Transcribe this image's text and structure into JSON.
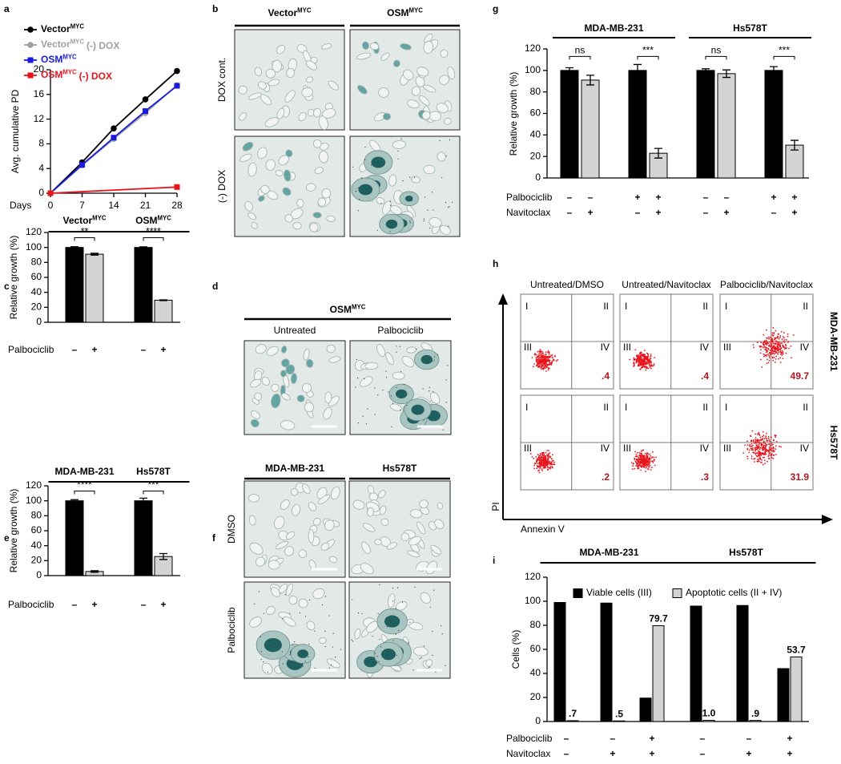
{
  "chart_data": [
    {
      "type": "line",
      "label": "a",
      "ylabel": "Avg. cumulative PD",
      "xlabel": "Days",
      "x": [
        0,
        7,
        14,
        21,
        28
      ],
      "xlim": [
        0,
        28
      ],
      "xticks": [
        0,
        7,
        14,
        21,
        28
      ],
      "ylim": [
        0,
        20
      ],
      "yticks": [
        0,
        4,
        8,
        12,
        16,
        20
      ],
      "series": [
        {
          "name": "Vector",
          "name_sup": "MYC",
          "color": "#000000",
          "marker": "circle",
          "values": [
            0,
            5,
            10.5,
            15.2,
            19.8
          ]
        },
        {
          "name": "Vector",
          "name_sup": "MYC",
          "name_suffix": "(-) DOX",
          "color": "#a0a0a0",
          "marker": "circle",
          "values": [
            0,
            4.5,
            8.8,
            13,
            17.5
          ]
        },
        {
          "name": "OSM",
          "name_sup": "MYC",
          "color": "#1a1adc",
          "marker": "square",
          "values": [
            0,
            4.6,
            9,
            13.3,
            17.4
          ]
        },
        {
          "name": "OSM",
          "name_sup": "MYC",
          "name_suffix": "(-) DOX",
          "color": "#e8141c",
          "marker": "square",
          "x": [
            0,
            28
          ],
          "values": [
            0,
            1
          ]
        }
      ]
    },
    {
      "type": "image-grid",
      "label": "b",
      "columns": [
        {
          "name": "Vector",
          "name_sup": "MYC"
        },
        {
          "name": "OSM",
          "name_sup": "MYC"
        }
      ],
      "rows": [
        "DOX cont.",
        "(-) DOX"
      ]
    },
    {
      "type": "bar",
      "label": "c",
      "ylabel": "Relative growth (%)",
      "ylim": [
        0,
        120
      ],
      "yticks": [
        0,
        20,
        40,
        60,
        80,
        100,
        120
      ],
      "headers": [
        {
          "name": "Vector",
          "name_sup": "MYC"
        },
        {
          "name": "OSM",
          "name_sup": "MYC"
        }
      ],
      "series": [
        {
          "color": "#000000",
          "values": [
            100,
            100
          ],
          "errors": [
            1,
            0.8
          ]
        },
        {
          "color": "#d3d3d3",
          "values": [
            91,
            29.5
          ],
          "errors": [
            1.2,
            0.5
          ]
        }
      ],
      "significance": [
        "**",
        "****"
      ],
      "treatments": [
        {
          "name": "Palbociclib",
          "signs": [
            "–",
            "+",
            "–",
            "+"
          ]
        }
      ]
    },
    {
      "type": "image-grid",
      "label": "d",
      "header": {
        "name": "OSM",
        "name_sup": "MYC"
      },
      "columns": [
        {
          "name": "Untreated"
        },
        {
          "name": "Palbociclib"
        }
      ]
    },
    {
      "type": "bar",
      "label": "e",
      "ylabel": "Relative growth (%)",
      "ylim": [
        0,
        120
      ],
      "yticks": [
        0,
        20,
        40,
        60,
        80,
        100,
        120
      ],
      "headers": [
        {
          "name": "MDA-MB-231"
        },
        {
          "name": "Hs578T"
        }
      ],
      "series": [
        {
          "color": "#000000",
          "values": [
            100,
            100
          ],
          "errors": [
            1.5,
            3.5
          ]
        },
        {
          "color": "#d3d3d3",
          "values": [
            5.5,
            25.5
          ],
          "errors": [
            1,
            4
          ]
        }
      ],
      "significance": [
        "****",
        "***"
      ],
      "treatments": [
        {
          "name": "Palbociclib",
          "signs": [
            "–",
            "+",
            "–",
            "+"
          ]
        }
      ]
    },
    {
      "type": "image-grid",
      "label": "f",
      "columns": [
        {
          "name": "MDA-MB-231"
        },
        {
          "name": "Hs578T"
        }
      ],
      "rows": [
        "DMSO",
        "Palbociclib"
      ]
    },
    {
      "type": "bar",
      "label": "g",
      "ylabel": "Relative growth (%)",
      "ylim": [
        0,
        120
      ],
      "yticks": [
        0,
        20,
        40,
        60,
        80,
        100,
        120
      ],
      "headers": [
        {
          "name": "MDA-MB-231"
        },
        {
          "name": "Hs578T"
        }
      ],
      "series": [
        {
          "color": "#000000",
          "values": [
            100,
            100,
            100,
            100
          ],
          "errors": [
            2.5,
            5.5,
            1.5,
            3.5
          ]
        },
        {
          "color": "#d3d3d3",
          "values": [
            91,
            23,
            97,
            30.5
          ],
          "errors": [
            4.5,
            4.5,
            3.5,
            4.5
          ]
        }
      ],
      "significance": [
        "ns",
        "***",
        "ns",
        "***"
      ],
      "treatments": [
        {
          "name": "Palbociclib",
          "signs": [
            "–",
            "–",
            "+",
            "+",
            "–",
            "–",
            "+",
            "+"
          ]
        },
        {
          "name": "Navitoclax",
          "signs": [
            "–",
            "+",
            "–",
            "+",
            "–",
            "+",
            "–",
            "+"
          ]
        }
      ]
    },
    {
      "type": "flow-grid",
      "label": "h",
      "columns": [
        "Untreated/DMSO",
        "Untreated/Navitoclax",
        "Palbociclib/Navitoclax"
      ],
      "rows": [
        "MDA-MB-231",
        "Hs578T"
      ],
      "quadrants": [
        "I",
        "II",
        "III",
        "IV"
      ],
      "percentages": [
        [
          ".4",
          ".4",
          "49.7"
        ],
        [
          ".2",
          ".3",
          "31.9"
        ]
      ],
      "xlabel": "Annexin V",
      "ylabel": "PI"
    },
    {
      "type": "bar",
      "label": "i",
      "ylabel": "Cells (%)",
      "ylim": [
        0,
        120
      ],
      "yticks": [
        0,
        20,
        40,
        60,
        80,
        100,
        120
      ],
      "headers": [
        {
          "name": "MDA-MB-231"
        },
        {
          "name": "Hs578T"
        }
      ],
      "series": [
        {
          "name": "Viable cells (III)",
          "color": "#000000",
          "values": [
            99,
            98.5,
            19.5,
            96,
            96.5,
            44
          ]
        },
        {
          "name": "Apoptotic cells (II + IV)",
          "color": "#d3d3d3",
          "values": [
            0.7,
            0.5,
            79.7,
            1.0,
            0.9,
            53.7
          ],
          "value_labels": [
            ".7",
            ".5",
            "79.7",
            "1.0",
            ".9",
            "53.7"
          ]
        }
      ],
      "treatments": [
        {
          "name": "Palbociclib",
          "signs": [
            "–",
            "–",
            "+",
            "–",
            "–",
            "+"
          ]
        },
        {
          "name": "Navitoclax",
          "signs": [
            "–",
            "+",
            "+",
            "–",
            "+",
            "+"
          ]
        }
      ]
    }
  ]
}
